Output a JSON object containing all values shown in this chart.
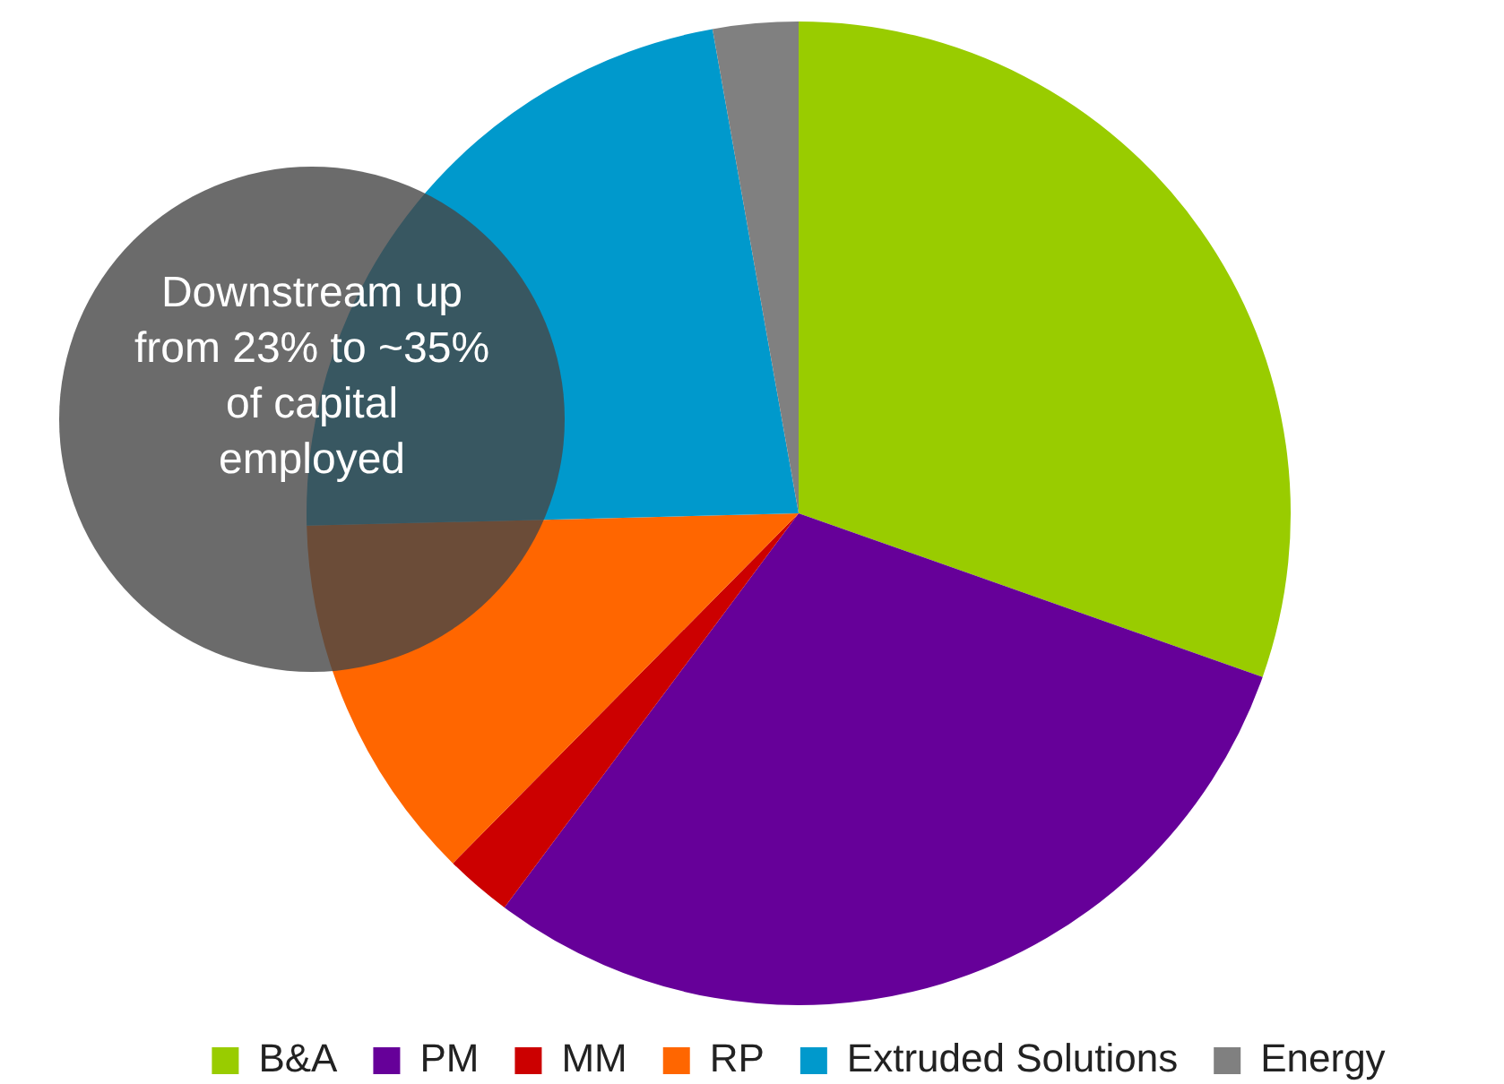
{
  "chart_data": {
    "type": "pie",
    "categories": [
      "B&A",
      "PM",
      "MM",
      "RP",
      "Extruded Solutions",
      "Energy"
    ],
    "values": [
      30.4,
      29.8,
      2.2,
      12.2,
      22.6,
      2.8
    ],
    "colors": [
      "#99cc00",
      "#660099",
      "#cc0000",
      "#ff6600",
      "#0099cc",
      "#808080"
    ],
    "legend": "bottom",
    "annotations": [
      "Downstream up from 23% to ~35% of capital employed"
    ]
  }
}
